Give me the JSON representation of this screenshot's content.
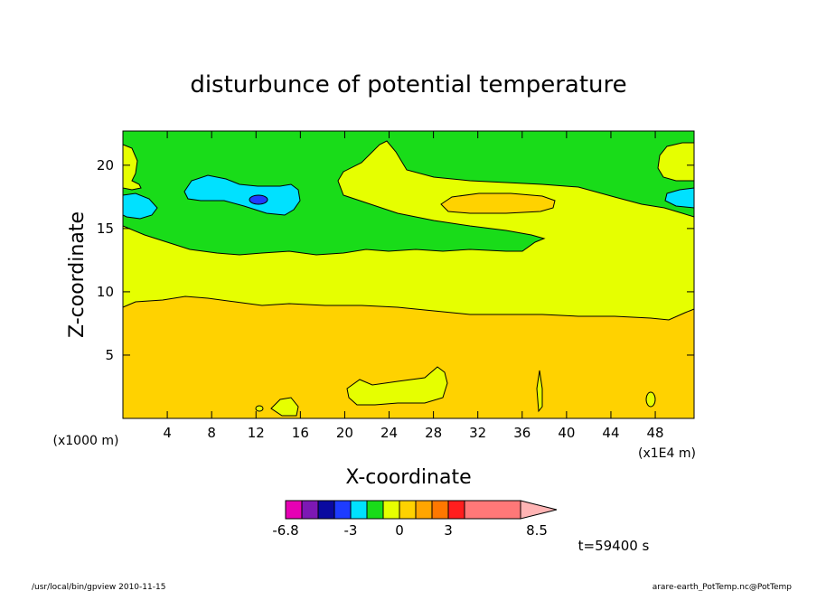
{
  "chart_data": {
    "type": "heatmap",
    "title": "disturbunce of potential temperature",
    "xlabel": "X-coordinate",
    "ylabel": "Z-coordinate",
    "x_unit_label": "(x1E4 m)",
    "y_unit_label": "(x1000 m)",
    "xlim": [
      0,
      51.5
    ],
    "ylim": [
      0,
      22.7
    ],
    "x_ticks": [
      4,
      8,
      12,
      16,
      20,
      24,
      28,
      32,
      36,
      40,
      44,
      48
    ],
    "y_ticks": [
      5,
      10,
      15,
      20
    ],
    "grid": false,
    "colorbar": {
      "levels": [
        -6.8,
        -6.0,
        -5.0,
        -4.0,
        -3.0,
        -2.0,
        -1.0,
        0.0,
        1.0,
        2.0,
        3.0,
        4.0,
        5.0,
        8.5
      ],
      "colors": [
        "#e600b4",
        "#7d18b4",
        "#0a0aa0",
        "#1e3cff",
        "#00e1ff",
        "#19dc19",
        "#e6ff00",
        "#ffd200",
        "#ffa500",
        "#ff7800",
        "#ff1e1e",
        "#ff7878",
        "#ffb4b4"
      ],
      "tick_labels": [
        "-6.8",
        "-3",
        "0",
        "3",
        "8.5"
      ],
      "tick_values": [
        -6.8,
        -3,
        0,
        3,
        8.5
      ],
      "extend": "max"
    },
    "regions": [
      {
        "value_range": [
          1,
          2
        ],
        "description": "lower layer, z from 0 to about 9-10"
      },
      {
        "value_range": [
          0,
          1
        ],
        "description": "middle layer, z from about 9-10 to about 13-16, plus upper tongue to z about 22 near x 20-48"
      },
      {
        "value_range": [
          1,
          2
        ],
        "description": "elongated upper blob centred near x 33, z 17"
      },
      {
        "value_range": [
          -1,
          0
        ],
        "description": "upper layer, z above about 14-16"
      },
      {
        "value_range": [
          -2,
          -1
        ],
        "description": "patches near x 6-16, z 18; and side edges x 0-3 and x 49-51.5, z 16-18"
      },
      {
        "value_range": [
          -3,
          -2
        ],
        "description": "small cell near x 12, z 17.5"
      },
      {
        "value_range": [
          0,
          1
        ],
        "description": "small near-surface patches near x 14, 20-28, 37, 47"
      }
    ]
  },
  "time_label": "t=59400 s",
  "footer": {
    "left": "/usr/local/bin/gpview  2010-11-15",
    "right": "arare-earth_PotTemp.nc@PotTemp"
  }
}
